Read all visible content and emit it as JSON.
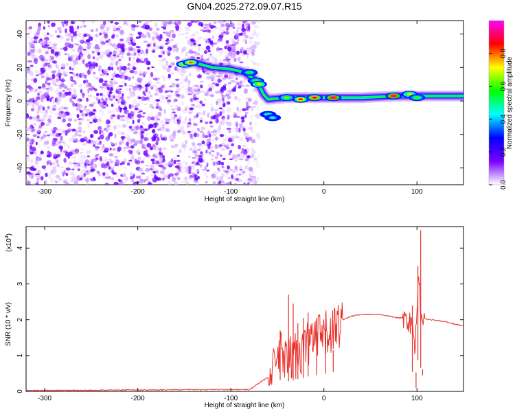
{
  "title": "GN04.2025.272.09.07.R15",
  "chart_data": [
    {
      "type": "heatmap",
      "title": "GN04.2025.272.09.07.R15",
      "xlabel": "Height of straight line (km)",
      "ylabel": "Frequency (Hz)",
      "xlim": [
        -320,
        150
      ],
      "ylim": [
        -50,
        48
      ],
      "xticks": [
        -300,
        -200,
        -100,
        0,
        100
      ],
      "yticks": [
        -40,
        -20,
        0,
        20,
        40
      ],
      "colorbar": {
        "label": "Normalized spectral amplitude",
        "range": [
          0,
          1
        ],
        "ticks": [
          "0.0",
          "0.2",
          "0.4",
          "0.6",
          "0.8"
        ],
        "colors": [
          "#ffffff",
          "#7a00ff",
          "#0000ff",
          "#00ffff",
          "#00ff00",
          "#ffff00",
          "#ff0000",
          "#ff00ff"
        ]
      },
      "features": {
        "noise_region_x": [
          -320,
          -75
        ],
        "noise_gap_x": [
          -155,
          -145
        ],
        "tone_track": [
          [
            -150,
            22
          ],
          [
            -140,
            23
          ],
          [
            -120,
            20
          ],
          [
            -100,
            19
          ],
          [
            -85,
            17
          ],
          [
            -75,
            13
          ],
          [
            -70,
            10
          ],
          [
            -65,
            4
          ],
          [
            -60,
            1
          ],
          [
            -40,
            2
          ],
          [
            -20,
            2
          ],
          [
            0,
            2
          ],
          [
            40,
            2
          ],
          [
            80,
            3
          ],
          [
            100,
            3
          ],
          [
            150,
            3
          ]
        ],
        "peak_blobs": [
          {
            "x": -150,
            "y": 22,
            "a": 0.75
          },
          {
            "x": -143,
            "y": 23,
            "a": 0.8
          },
          {
            "x": -80,
            "y": 17,
            "a": 0.55
          },
          {
            "x": -73,
            "y": 12,
            "a": 0.6
          },
          {
            "x": -70,
            "y": 10,
            "a": 0.7
          },
          {
            "x": -60,
            "y": -8,
            "a": 0.5
          },
          {
            "x": -55,
            "y": -10,
            "a": 0.45
          },
          {
            "x": -40,
            "y": 2,
            "a": 0.65
          },
          {
            "x": -25,
            "y": 1,
            "a": 0.85
          },
          {
            "x": -10,
            "y": 2,
            "a": 0.9
          },
          {
            "x": 10,
            "y": 2,
            "a": 0.95
          },
          {
            "x": 75,
            "y": 3,
            "a": 0.95
          },
          {
            "x": 92,
            "y": 4,
            "a": 0.7
          },
          {
            "x": 100,
            "y": 2,
            "a": 0.6
          }
        ]
      }
    },
    {
      "type": "line",
      "xlabel": "Height of straight line (km)",
      "ylabel": "SNR (10 * v/v)",
      "y_multiplier": "(x10",
      "y_multiplier_exp": "4",
      "y_multiplier_close": ")",
      "xlim": [
        -320,
        150
      ],
      "ylim": [
        0,
        4.6
      ],
      "xticks": [
        -300,
        -200,
        -100,
        0,
        100
      ],
      "yticks": [
        0,
        1,
        2,
        3,
        4
      ],
      "color": "#e8302a",
      "x": [
        -320,
        -140,
        -80,
        -60,
        -50,
        -45,
        -40,
        -35,
        -30,
        -25,
        -20,
        -15,
        -10,
        -5,
        0,
        5,
        10,
        15,
        20,
        30,
        40,
        50,
        60,
        70,
        80,
        85,
        90,
        95,
        98,
        100,
        102,
        104,
        106,
        110,
        120,
        130,
        140,
        150
      ],
      "y": [
        0.02,
        0.05,
        0.05,
        0.4,
        1.0,
        1.1,
        0.9,
        1.0,
        1.1,
        1.2,
        1.3,
        1.45,
        1.5,
        1.55,
        1.6,
        1.7,
        1.8,
        1.9,
        2.0,
        2.1,
        2.15,
        2.15,
        2.15,
        2.1,
        2.05,
        2.05,
        2.0,
        1.8,
        1.2,
        2.3,
        3.5,
        2.2,
        2.05,
        2.02,
        1.98,
        1.95,
        1.88,
        1.83
      ],
      "spikes": [
        {
          "x": -47,
          "y": 1.7
        },
        {
          "x": -38,
          "y": 2.7
        },
        {
          "x": -33,
          "y": 2.45
        },
        {
          "x": -28,
          "y": 1.9
        },
        {
          "x": -22,
          "y": 2.05
        },
        {
          "x": -17,
          "y": 2.2
        },
        {
          "x": -8,
          "y": 2.05
        },
        {
          "x": 2,
          "y": 2.2
        },
        {
          "x": 10,
          "y": 1.15
        },
        {
          "x": 95,
          "y": 2.4
        },
        {
          "x": 99,
          "y": 0.1
        },
        {
          "x": 101,
          "y": 3.5
        },
        {
          "x": 104,
          "y": 4.5
        },
        {
          "x": 106,
          "y": 0.45
        }
      ]
    }
  ]
}
